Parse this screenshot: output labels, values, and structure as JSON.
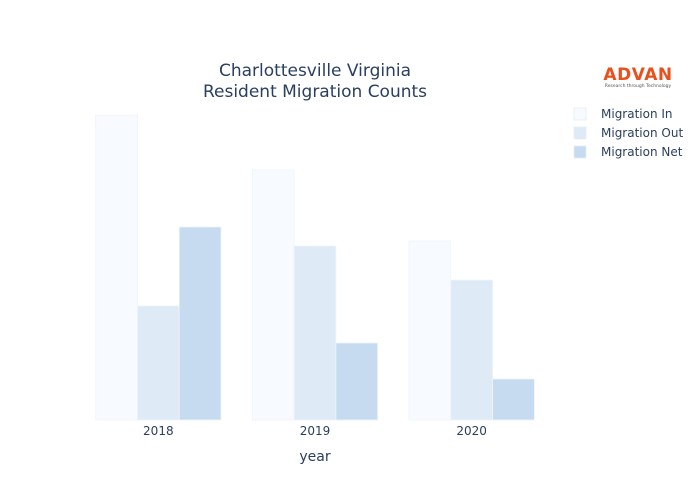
{
  "chart_data": {
    "type": "bar",
    "title_line1": "Charlottesville Virginia",
    "title_line2": "Resident Migration Counts",
    "xlabel": "year",
    "ylabel": "",
    "categories": [
      "2018",
      "2019",
      "2020"
    ],
    "series": [
      {
        "name": "Migration In",
        "values": [
          305,
          250,
          179
        ],
        "color": "#f7fbff"
      },
      {
        "name": "Migration Out",
        "values": [
          114,
          174,
          140
        ],
        "color": "#deebf7"
      },
      {
        "name": "Migration Net",
        "values": [
          193,
          77,
          41
        ],
        "color": "#c6dbef"
      }
    ],
    "ylim": [
      0,
      320
    ],
    "y_axis_visible": false,
    "grid": false,
    "legend_position": "top-right"
  },
  "logo": {
    "name": "ADVAN",
    "tagline": "Research through Technology"
  }
}
